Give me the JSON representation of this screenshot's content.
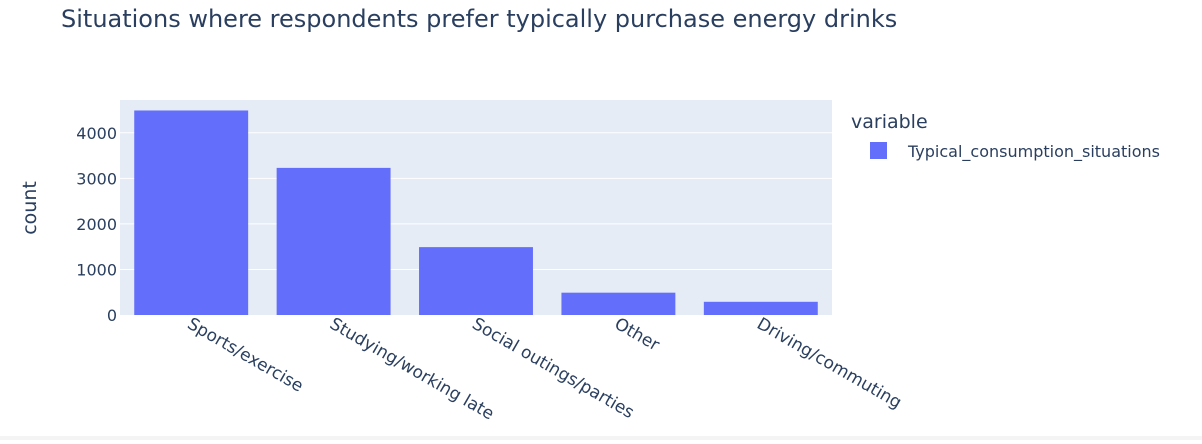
{
  "chart_data": {
    "type": "bar",
    "title": "Situations where respondents prefer typically purchase energy drinks",
    "xlabel": "",
    "ylabel": "count",
    "categories": [
      "Sports/exercise",
      "Studying/working late",
      "Social outings/parties",
      "Other",
      "Driving/commuting"
    ],
    "series": [
      {
        "name": "Typical_consumption_situations",
        "values": [
          4490,
          3230,
          1490,
          490,
          290
        ]
      }
    ],
    "ylim": [
      0,
      4720
    ],
    "yticks": [
      0,
      1000,
      2000,
      3000,
      4000
    ],
    "ytick_labels": [
      "0",
      "1000",
      "2000",
      "3000",
      "4000"
    ],
    "grid": true,
    "legend": {
      "title": "variable",
      "placement": "right"
    },
    "colors": {
      "bar": "#636efa",
      "plot_bg": "#e5ecf6",
      "grid": "#ffffff",
      "text": "#2a3f5f"
    }
  }
}
